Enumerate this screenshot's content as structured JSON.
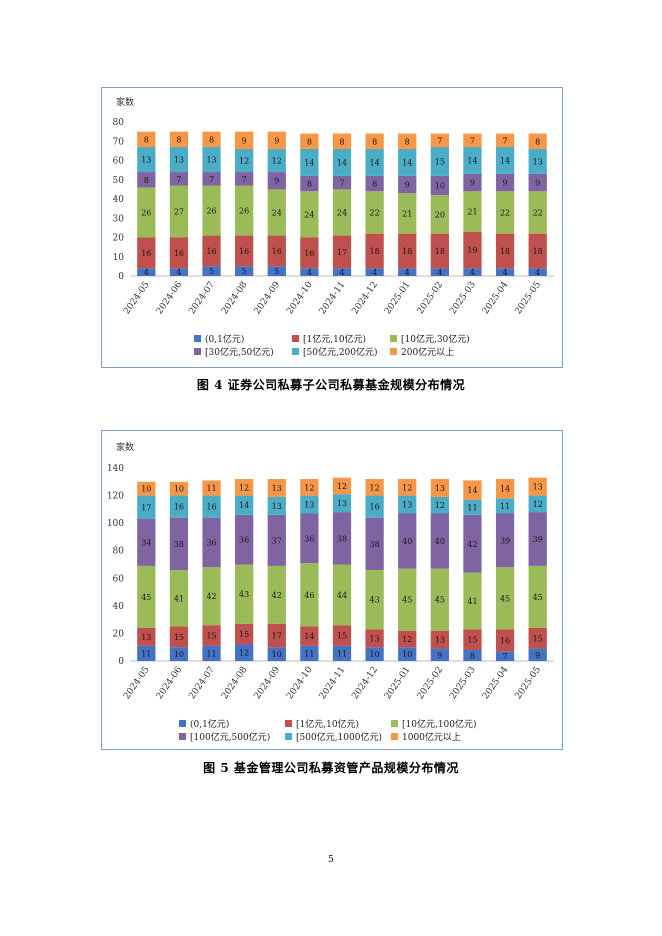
{
  "page_number": "5",
  "colors": {
    "c0": "#4472c4",
    "c1": "#c0504d",
    "c2": "#9bbb59",
    "c3": "#8064a2",
    "c4": "#4bacc6",
    "c5": "#f79646"
  },
  "chart_data": [
    {
      "type": "bar",
      "stacked": true,
      "caption": "图 4   证券公司私募子公司私募基金规模分布情况",
      "ylabel": "家数",
      "ylim": [
        0,
        80
      ],
      "yticks": [
        0,
        10,
        20,
        30,
        40,
        50,
        60,
        70,
        80
      ],
      "grid": false,
      "legend": "bottom",
      "categories": [
        "2024-05",
        "2024-06",
        "2024-07",
        "2024-08",
        "2024-09",
        "2024-10",
        "2024-11",
        "2024-12",
        "2025-01",
        "2025-02",
        "2025-03",
        "2025-04",
        "2025-05"
      ],
      "series": [
        {
          "name": "(0,1亿元)",
          "color": "#4472c4",
          "values": [
            4,
            4,
            5,
            5,
            5,
            4,
            4,
            4,
            4,
            4,
            4,
            4,
            4
          ]
        },
        {
          "name": "[1亿元,10亿元)",
          "color": "#c0504d",
          "values": [
            16,
            16,
            16,
            16,
            16,
            16,
            17,
            18,
            18,
            18,
            19,
            18,
            18
          ]
        },
        {
          "name": "[10亿元,30亿元)",
          "color": "#9bbb59",
          "values": [
            26,
            27,
            26,
            26,
            24,
            24,
            24,
            22,
            21,
            20,
            21,
            22,
            22
          ]
        },
        {
          "name": "[30亿元,50亿元)",
          "color": "#8064a2",
          "values": [
            8,
            7,
            7,
            7,
            9,
            8,
            7,
            8,
            9,
            10,
            9,
            9,
            9
          ]
        },
        {
          "name": "[50亿元,200亿元)",
          "color": "#4bacc6",
          "values": [
            13,
            13,
            13,
            12,
            12,
            14,
            14,
            14,
            14,
            15,
            14,
            14,
            13
          ]
        },
        {
          "name": "200亿元以上",
          "color": "#f79646",
          "values": [
            8,
            8,
            8,
            9,
            9,
            8,
            8,
            8,
            8,
            7,
            7,
            7,
            8
          ]
        }
      ]
    },
    {
      "type": "bar",
      "stacked": true,
      "caption": "图 5   基金管理公司私募资管产品规模分布情况",
      "ylabel": "家数",
      "ylim": [
        0,
        140
      ],
      "yticks": [
        0,
        20,
        40,
        60,
        80,
        100,
        120,
        140
      ],
      "grid": false,
      "legend": "bottom",
      "categories": [
        "2024-05",
        "2024-06",
        "2024-07",
        "2024-08",
        "2024-09",
        "2024-10",
        "2024-11",
        "2024-12",
        "2025-01",
        "2025-02",
        "2025-03",
        "2025-04",
        "2025-05"
      ],
      "series": [
        {
          "name": "(0,1亿元)",
          "color": "#4472c4",
          "values": [
            11,
            10,
            11,
            12,
            10,
            11,
            11,
            10,
            10,
            9,
            8,
            7,
            9
          ]
        },
        {
          "name": "[1亿元,10亿元)",
          "color": "#c0504d",
          "values": [
            13,
            15,
            15,
            15,
            17,
            14,
            15,
            13,
            12,
            13,
            15,
            16,
            15
          ]
        },
        {
          "name": "[10亿元,100亿元)",
          "color": "#9bbb59",
          "values": [
            45,
            41,
            42,
            43,
            42,
            46,
            44,
            43,
            45,
            45,
            41,
            45,
            45
          ]
        },
        {
          "name": "[100亿元,500亿元)",
          "color": "#8064a2",
          "values": [
            34,
            38,
            36,
            36,
            37,
            36,
            38,
            38,
            40,
            40,
            42,
            39,
            39
          ]
        },
        {
          "name": "[500亿元,1000亿元)",
          "color": "#4bacc6",
          "values": [
            17,
            16,
            16,
            14,
            13,
            13,
            13,
            16,
            13,
            12,
            11,
            11,
            12
          ]
        },
        {
          "name": "1000亿元以上",
          "color": "#f79646",
          "values": [
            10,
            10,
            11,
            12,
            13,
            12,
            12,
            12,
            12,
            13,
            14,
            14,
            13
          ]
        }
      ]
    }
  ]
}
